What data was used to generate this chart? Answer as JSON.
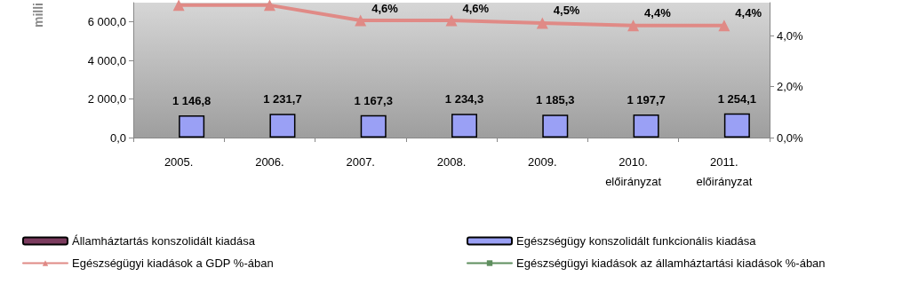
{
  "chart_data": {
    "type": "bar",
    "ylabel": "milli",
    "categories": [
      "2005.",
      "2006.",
      "2007.",
      "2008.",
      "2009.",
      "2010.\nelőirányzat",
      "2011.\nelőirányzat"
    ],
    "series": [
      {
        "name": "Államháztartás konszolidált kiadása",
        "color": "#7b3b5e",
        "values": [
          null,
          null,
          null,
          null,
          null,
          null,
          null
        ]
      },
      {
        "name": "Egészségügy konszolidált funkcionális kiadása",
        "color": "#9aa0f5",
        "values": [
          1146.8,
          1231.7,
          1167.3,
          1234.3,
          1185.3,
          1197.7,
          1254.1
        ],
        "value_labels": [
          "1 146,8",
          "1 231,7",
          "1 167,3",
          "1 234,3",
          "1 185,3",
          "1 197,7",
          "1 254,1"
        ]
      },
      {
        "name": "Egészségügyi kiadások a GDP %-ában",
        "type": "line",
        "axis": "y2",
        "marker": "triangle",
        "color": "#e08a86",
        "values": [
          5.2,
          5.2,
          4.6,
          4.6,
          4.5,
          4.4,
          4.4
        ],
        "value_labels": [
          null,
          null,
          "4,6%",
          "4,6%",
          "4,5%",
          "4,4%",
          "4,4%"
        ]
      },
      {
        "name": "Egészségügyi kiadások az államháztartási kiadások %-ában",
        "type": "line",
        "axis": "y2",
        "marker": "square",
        "color": "#5f8f5f",
        "values": [
          null,
          null,
          null,
          null,
          null,
          null,
          null
        ]
      }
    ],
    "ylim": [
      0,
      7000
    ],
    "yticks": [
      {
        "value": 0,
        "label": "0,0"
      },
      {
        "value": 2000,
        "label": "2 000,0"
      },
      {
        "value": 4000,
        "label": "4 000,0"
      },
      {
        "value": 6000,
        "label": "6 000,0"
      }
    ],
    "y2lim": [
      0,
      5.3
    ],
    "y2ticks": [
      {
        "value": 0,
        "label": "0,0%"
      },
      {
        "value": 2,
        "label": "2,0%"
      },
      {
        "value": 4,
        "label": "4,0%"
      }
    ],
    "grid": false,
    "legend": "bottom"
  }
}
